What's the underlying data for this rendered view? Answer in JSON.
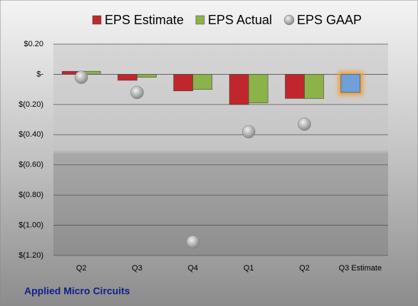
{
  "chart_data": {
    "type": "bar",
    "title": "Applied Micro Circuits",
    "categories": [
      "Q2",
      "Q3",
      "Q4",
      "Q1",
      "Q2",
      "Q3 Estimate"
    ],
    "series": [
      {
        "name": "EPS Estimate",
        "color": "#c0272d",
        "colors": [
          "#c0272d",
          "#c0272d",
          "#c0272d",
          "#c0272d",
          "#c0272d",
          "#6fa0d8"
        ],
        "values": [
          0.02,
          -0.04,
          -0.11,
          -0.2,
          -0.16,
          -0.12
        ]
      },
      {
        "name": "EPS Actual",
        "color": "#8cb24a",
        "values": [
          0.02,
          -0.02,
          -0.1,
          -0.19,
          -0.16,
          null
        ]
      },
      {
        "name": "EPS GAAP",
        "color": "#b0b0b0",
        "marker": "circle",
        "values": [
          -0.02,
          -0.12,
          -1.11,
          -0.38,
          -0.33,
          null
        ]
      }
    ],
    "ylim": [
      -1.2,
      0.2
    ],
    "yticks": [
      {
        "value": -1.2,
        "label": "$(1.20)"
      },
      {
        "value": -1.0,
        "label": "$(1.00)"
      },
      {
        "value": -0.8,
        "label": "$(0.80)"
      },
      {
        "value": -0.6,
        "label": "$(0.60)"
      },
      {
        "value": -0.4,
        "label": "$(0.40)"
      },
      {
        "value": -0.2,
        "label": "$(0.20)"
      },
      {
        "value": 0,
        "label": "$-"
      },
      {
        "value": 0.2,
        "label": "$0.20"
      }
    ],
    "grid": true,
    "legend": "top"
  }
}
